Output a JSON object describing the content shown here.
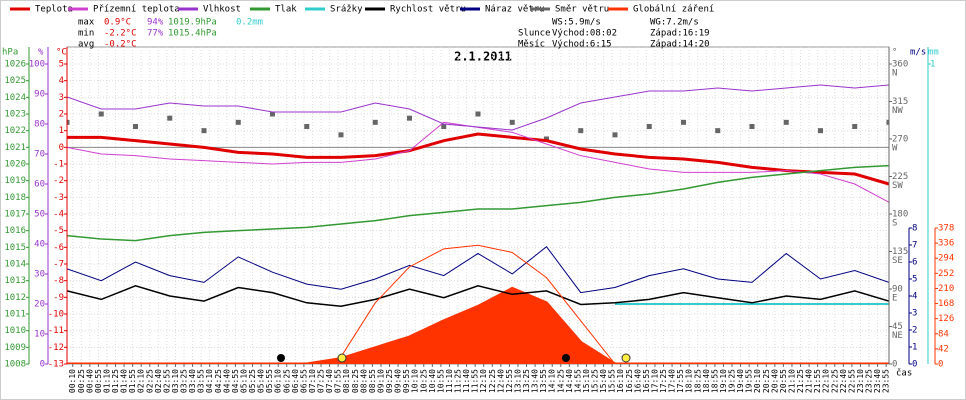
{
  "chart_data": {
    "type": "line",
    "title": "2.1.2011",
    "xlim": [
      0,
      1440
    ],
    "xlabel": "čas",
    "xticks": [
      {
        "value": 10,
        "label": "00:10"
      },
      {
        "value": 25,
        "label": "00:25"
      },
      {
        "value": 40,
        "label": "00:40"
      },
      {
        "value": 55,
        "label": "00:55"
      },
      {
        "value": 70,
        "label": "01:10"
      },
      {
        "value": 85,
        "label": "01:25"
      },
      {
        "value": 100,
        "label": "01:40"
      },
      {
        "value": 115,
        "label": "01:55"
      },
      {
        "value": 130,
        "label": "02:10"
      },
      {
        "value": 145,
        "label": "02:25"
      },
      {
        "value": 160,
        "label": "02:40"
      },
      {
        "value": 175,
        "label": "02:55"
      },
      {
        "value": 190,
        "label": "03:10"
      },
      {
        "value": 205,
        "label": "03:25"
      },
      {
        "value": 220,
        "label": "03:40"
      },
      {
        "value": 235,
        "label": "03:55"
      },
      {
        "value": 250,
        "label": "04:10"
      },
      {
        "value": 265,
        "label": "04:25"
      },
      {
        "value": 280,
        "label": "04:40"
      },
      {
        "value": 295,
        "label": "04:55"
      },
      {
        "value": 310,
        "label": "05:10"
      },
      {
        "value": 325,
        "label": "05:25"
      },
      {
        "value": 340,
        "label": "05:40"
      },
      {
        "value": 355,
        "label": "05:55"
      },
      {
        "value": 370,
        "label": "06:10"
      },
      {
        "value": 385,
        "label": "06:25"
      },
      {
        "value": 400,
        "label": "06:40"
      },
      {
        "value": 415,
        "label": "06:55"
      },
      {
        "value": 430,
        "label": "07:10"
      },
      {
        "value": 445,
        "label": "07:25"
      },
      {
        "value": 460,
        "label": "07:40"
      },
      {
        "value": 475,
        "label": "07:55"
      },
      {
        "value": 490,
        "label": "08:10"
      },
      {
        "value": 505,
        "label": "08:25"
      },
      {
        "value": 520,
        "label": "08:40"
      },
      {
        "value": 535,
        "label": "08:55"
      },
      {
        "value": 550,
        "label": "09:10"
      },
      {
        "value": 565,
        "label": "09:25"
      },
      {
        "value": 580,
        "label": "09:40"
      },
      {
        "value": 595,
        "label": "09:55"
      },
      {
        "value": 610,
        "label": "10:10"
      },
      {
        "value": 625,
        "label": "10:25"
      },
      {
        "value": 640,
        "label": "10:40"
      },
      {
        "value": 655,
        "label": "10:55"
      },
      {
        "value": 670,
        "label": "11:10"
      },
      {
        "value": 685,
        "label": "11:25"
      },
      {
        "value": 700,
        "label": "11:40"
      },
      {
        "value": 715,
        "label": "11:55"
      },
      {
        "value": 730,
        "label": "12:10"
      },
      {
        "value": 745,
        "label": "12:25"
      },
      {
        "value": 760,
        "label": "12:40"
      },
      {
        "value": 775,
        "label": "12:55"
      },
      {
        "value": 790,
        "label": "13:10"
      },
      {
        "value": 805,
        "label": "13:25"
      },
      {
        "value": 820,
        "label": "13:40"
      },
      {
        "value": 835,
        "label": "13:55"
      },
      {
        "value": 850,
        "label": "14:10"
      },
      {
        "value": 865,
        "label": "14:25"
      },
      {
        "value": 880,
        "label": "14:40"
      },
      {
        "value": 895,
        "label": "14:55"
      },
      {
        "value": 910,
        "label": "15:10"
      },
      {
        "value": 925,
        "label": "15:25"
      },
      {
        "value": 940,
        "label": "15:40"
      },
      {
        "value": 955,
        "label": "15:55"
      },
      {
        "value": 970,
        "label": "16:10"
      },
      {
        "value": 985,
        "label": "16:25"
      },
      {
        "value": 1000,
        "label": "16:40"
      },
      {
        "value": 1015,
        "label": "16:55"
      },
      {
        "value": 1030,
        "label": "17:10"
      },
      {
        "value": 1045,
        "label": "17:25"
      },
      {
        "value": 1060,
        "label": "17:40"
      },
      {
        "value": 1075,
        "label": "17:55"
      },
      {
        "value": 1090,
        "label": "18:10"
      },
      {
        "value": 1105,
        "label": "18:25"
      },
      {
        "value": 1120,
        "label": "18:40"
      },
      {
        "value": 1135,
        "label": "18:55"
      },
      {
        "value": 1150,
        "label": "19:10"
      },
      {
        "value": 1165,
        "label": "19:25"
      },
      {
        "value": 1180,
        "label": "19:40"
      },
      {
        "value": 1195,
        "label": "19:55"
      },
      {
        "value": 1210,
        "label": "20:10"
      },
      {
        "value": 1225,
        "label": "20:25"
      },
      {
        "value": 1240,
        "label": "20:40"
      },
      {
        "value": 1255,
        "label": "20:55"
      },
      {
        "value": 1270,
        "label": "21:10"
      },
      {
        "value": 1285,
        "label": "21:25"
      },
      {
        "value": 1300,
        "label": "21:40"
      },
      {
        "value": 1315,
        "label": "21:55"
      },
      {
        "value": 1330,
        "label": "22:10"
      },
      {
        "value": 1345,
        "label": "22:25"
      },
      {
        "value": 1360,
        "label": "22:40"
      },
      {
        "value": 1375,
        "label": "22:55"
      },
      {
        "value": 1390,
        "label": "23:10"
      },
      {
        "value": 1405,
        "label": "23:25"
      },
      {
        "value": 1420,
        "label": "23:40"
      },
      {
        "value": 1435,
        "label": "23:55"
      }
    ],
    "axes": {
      "hpa": {
        "label": "hPa",
        "color": "#339933",
        "lim": [
          1008,
          1026
        ],
        "ticks": [
          1008,
          1009,
          1010,
          1011,
          1012,
          1013,
          1014,
          1015,
          1016,
          1017,
          1018,
          1019,
          1020,
          1021,
          1022,
          1023,
          1024,
          1025,
          1026
        ]
      },
      "pct": {
        "label": "%",
        "color": "#9933cc",
        "lim": [
          0,
          100
        ],
        "ticks": [
          0,
          10,
          20,
          30,
          40,
          50,
          60,
          70,
          80,
          90,
          100
        ]
      },
      "temp": {
        "label": "°C",
        "color": "#e00000",
        "lim": [
          -13,
          5
        ],
        "ticks": [
          -13,
          -12,
          -11,
          -10,
          -9,
          -8,
          -7,
          -6,
          -5,
          -4,
          -3,
          -2,
          -1,
          0,
          1,
          2,
          3,
          4,
          5
        ]
      },
      "dir": {
        "label": "°",
        "color": "#666666",
        "lim": [
          0,
          360
        ],
        "ticks": [
          {
            "value": 360,
            "label": "360",
            "dir": "N"
          },
          {
            "value": 315,
            "label": "315",
            "dir": "NW"
          },
          {
            "value": 270,
            "label": "270",
            "dir": "W"
          },
          {
            "value": 225,
            "label": "225",
            "dir": "SW"
          },
          {
            "value": 180,
            "label": "180",
            "dir": "S"
          },
          {
            "value": 135,
            "label": "135",
            "dir": "SE"
          },
          {
            "value": 90,
            "label": "90",
            "dir": "E"
          },
          {
            "value": 45,
            "label": "45",
            "dir": "NE"
          },
          0
        ]
      },
      "wind": {
        "label": "m/s",
        "color": "#000080",
        "lim": [
          0,
          8
        ],
        "ticks": [
          0,
          1,
          2,
          3,
          4,
          5,
          6,
          7,
          8
        ]
      },
      "mm": {
        "label": "mm",
        "color": "#33cccc",
        "lim": [
          0,
          1
        ],
        "ticks": [
          1
        ]
      },
      "rad": {
        "color": "#ff3300",
        "lim": [
          0,
          378
        ],
        "ticks": [
          0,
          42,
          84,
          126,
          168,
          210,
          252,
          294,
          336,
          378
        ]
      }
    },
    "x": [
      0,
      60,
      120,
      180,
      240,
      300,
      360,
      420,
      480,
      540,
      600,
      660,
      720,
      780,
      840,
      900,
      960,
      1020,
      1080,
      1140,
      1200,
      1260,
      1320,
      1380,
      1440
    ],
    "series": [
      {
        "name": "Teplota",
        "color": "#e00000",
        "axis": "temp",
        "kind": "line",
        "width": 3,
        "values": [
          0.6,
          0.6,
          0.4,
          0.2,
          0,
          -0.3,
          -0.4,
          -0.6,
          -0.6,
          -0.5,
          -0.2,
          0.4,
          0.8,
          0.6,
          0.4,
          -0.1,
          -0.4,
          -0.6,
          -0.7,
          -0.9,
          -1.2,
          -1.4,
          -1.5,
          -1.6,
          -2.2
        ]
      },
      {
        "name": "Přízemní teplota",
        "color": "#d040d0",
        "axis": "temp",
        "kind": "line",
        "width": 1,
        "values": [
          0,
          -0.4,
          -0.5,
          -0.7,
          -0.8,
          -0.9,
          -1.0,
          -0.9,
          -0.9,
          -0.7,
          -0.2,
          1.5,
          1.2,
          0.9,
          0.2,
          -0.5,
          -0.9,
          -1.3,
          -1.5,
          -1.5,
          -1.5,
          -1.4,
          -1.6,
          -2.2,
          -3.3
        ]
      },
      {
        "name": "Vlhkost",
        "color": "#9933cc",
        "axis": "pct",
        "kind": "line",
        "width": 1,
        "values": [
          89,
          85,
          85,
          87,
          86,
          86,
          84,
          84,
          84,
          87,
          85,
          80,
          79,
          78,
          82,
          87,
          89,
          91,
          91,
          92,
          91,
          92,
          93,
          92,
          93
        ]
      },
      {
        "name": "Tlak",
        "color": "#339933",
        "axis": "hpa",
        "kind": "line",
        "width": 1.5,
        "values": [
          1015.7,
          1015.5,
          1015.4,
          1015.7,
          1015.9,
          1016.0,
          1016.1,
          1016.2,
          1016.4,
          1016.6,
          1016.9,
          1017.1,
          1017.3,
          1017.3,
          1017.5,
          1017.7,
          1018.0,
          1018.2,
          1018.5,
          1018.9,
          1019.2,
          1019.4,
          1019.6,
          1019.8,
          1019.9
        ]
      },
      {
        "name": "Srážky",
        "color": "#33cccc",
        "axis": "mm",
        "kind": "line",
        "width": 2,
        "values": [
          null,
          null,
          null,
          null,
          null,
          null,
          null,
          null,
          null,
          null,
          null,
          null,
          null,
          null,
          null,
          null,
          0.2,
          0.2,
          0.2,
          0.2,
          0.2,
          0.2,
          0.2,
          0.2,
          0.2
        ]
      },
      {
        "name": "Rychlost větru",
        "color": "#000000",
        "axis": "wind",
        "kind": "line",
        "width": 1.5,
        "values": [
          4.3,
          3.8,
          4.6,
          4.0,
          3.7,
          4.5,
          4.2,
          3.6,
          3.4,
          3.8,
          4.4,
          3.9,
          4.6,
          4.1,
          4.3,
          3.5,
          3.6,
          3.8,
          4.2,
          3.9,
          3.6,
          4.0,
          3.8,
          4.3,
          3.7
        ]
      },
      {
        "name": "Náraz větru",
        "color": "#000080",
        "axis": "wind",
        "kind": "line",
        "width": 1,
        "values": [
          5.6,
          4.9,
          6.0,
          5.2,
          4.8,
          6.3,
          5.4,
          4.7,
          4.4,
          5.0,
          5.8,
          5.2,
          6.5,
          5.3,
          6.9,
          4.2,
          4.5,
          5.2,
          5.6,
          5.0,
          4.8,
          6.5,
          5.0,
          5.5,
          4.8
        ]
      },
      {
        "name": "Směr větru",
        "color": "#666666",
        "axis": "dir",
        "kind": "points",
        "values": [
          290,
          300,
          285,
          295,
          280,
          290,
          300,
          285,
          275,
          290,
          295,
          285,
          300,
          290,
          270,
          280,
          275,
          285,
          290,
          280,
          285,
          290,
          280,
          285,
          290
        ]
      },
      {
        "name": "Globální záření",
        "color": "#ff3300",
        "axis": "rad",
        "kind": "area",
        "values": [
          0,
          0,
          0,
          0,
          0,
          0,
          0,
          0,
          15,
          45,
          75,
          120,
          160,
          210,
          170,
          60,
          0,
          0,
          0,
          0,
          0,
          0,
          0,
          0,
          0
        ]
      },
      {
        "color": "#ff3300",
        "axis": "rad",
        "kind": "line",
        "width": 1,
        "values": [
          null,
          null,
          null,
          null,
          null,
          null,
          null,
          null,
          20,
          170,
          270,
          320,
          330,
          310,
          240,
          120,
          0,
          null,
          null,
          null,
          null,
          null,
          null,
          null,
          null
        ]
      }
    ],
    "stats": [
      {
        "label": "max",
        "items": [
          {
            "text": "0.9°C",
            "color": "#e00000"
          },
          {
            "text": "94%",
            "color": "#9933cc"
          },
          {
            "text": "1019.9hPa",
            "color": "#339933"
          },
          {
            "text": "0.2mm",
            "color": "#33cccc"
          }
        ]
      },
      {
        "label": "min",
        "items": [
          {
            "text": "-2.2°C",
            "color": "#e00000"
          },
          {
            "text": "77%",
            "color": "#9933cc"
          },
          {
            "text": "1015.4hPa",
            "color": "#339933"
          }
        ]
      },
      {
        "label": "avg",
        "items": [
          {
            "text": "-0.2°C",
            "color": "#e00000"
          }
        ]
      }
    ],
    "wind_stats": [
      "WS:5.9m/s",
      "WG:7.2m/s"
    ],
    "sun": {
      "label": "Slunce",
      "rise": "Východ:08:02",
      "set": "Západ:16:19"
    },
    "moon": {
      "label": "Měsíc",
      "rise": "Východ:6:15",
      "set": "Západ:14:20"
    }
  }
}
